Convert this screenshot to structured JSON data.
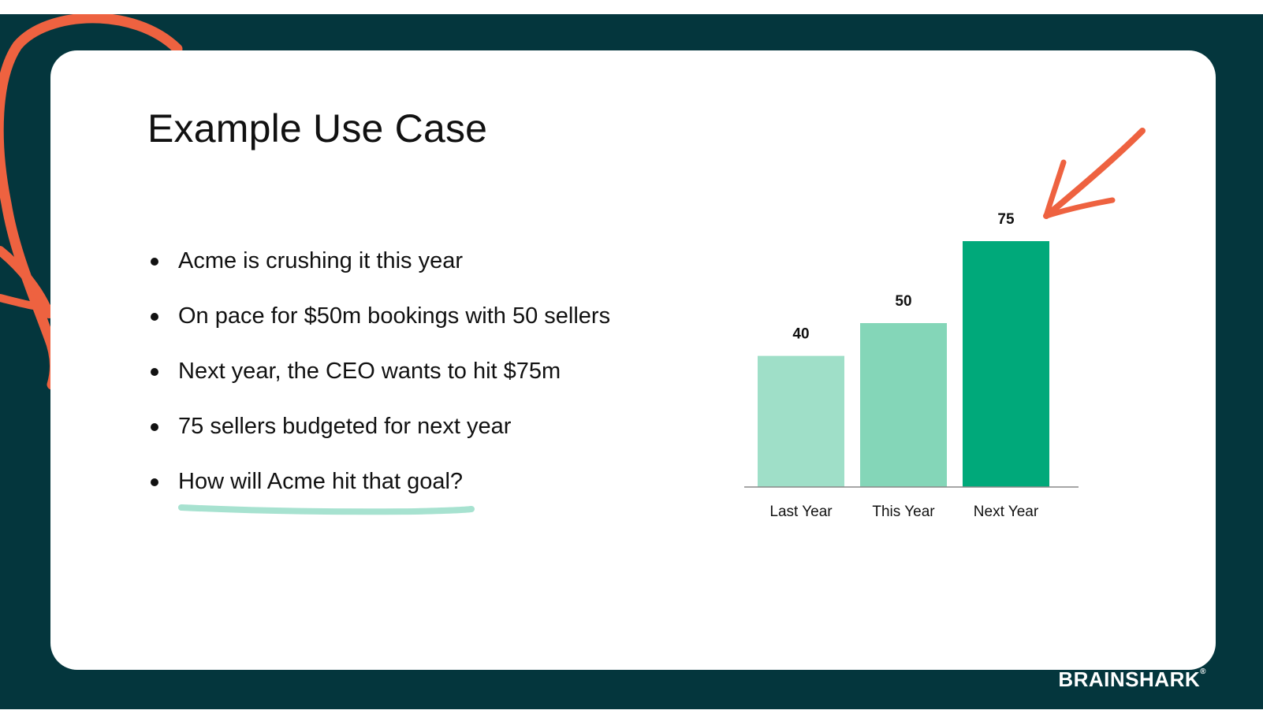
{
  "slide": {
    "title": "Example Use Case",
    "bullets": [
      "Acme is crushing it this year",
      "On pace for $50m bookings with 50 sellers",
      "Next year, the CEO wants to hit $75m",
      "75 sellers budgeted for next year",
      "How will Acme hit that goal?"
    ],
    "brand": "BRAINSHARK",
    "brand_mark": "®"
  },
  "colors": {
    "background": "#04363d",
    "card": "#ffffff",
    "accent_orange": "#ee6240",
    "underline_mint": "#a7e2d0"
  },
  "chart_data": {
    "type": "bar",
    "categories": [
      "Last Year",
      "This Year",
      "Next Year"
    ],
    "values": [
      40,
      50,
      75
    ],
    "colors": [
      "#9fdfc8",
      "#84d6b8",
      "#00a97a"
    ],
    "title": "",
    "xlabel": "",
    "ylabel": "",
    "ylim": [
      0,
      75
    ],
    "grid": false,
    "data_labels": true,
    "highlight": "Next Year"
  }
}
